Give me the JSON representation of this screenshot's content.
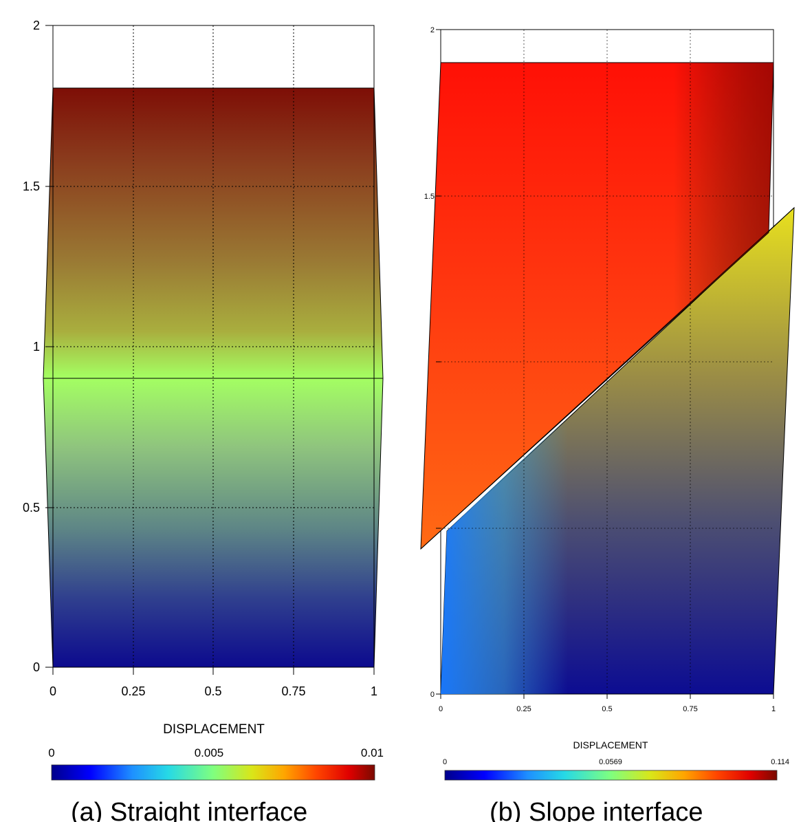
{
  "panels": [
    {
      "id": "a",
      "caption": "(a) Straight interface",
      "x_ticks": [
        "0",
        "0.25",
        "0.5",
        "0.75",
        "1"
      ],
      "y_ticks": [
        "0",
        "0.5",
        "1",
        "1.5",
        "2"
      ],
      "colorbar": {
        "title": "DISPLACEMENT",
        "min_label": "0",
        "mid_label": "0.005",
        "max_label": "0.01"
      }
    },
    {
      "id": "b",
      "caption": "(b) Slope interface",
      "x_ticks": [
        "0",
        "0.25",
        "0.5",
        "0.75",
        "1"
      ],
      "y_ticks": [
        "0",
        "1.5",
        "2"
      ],
      "colorbar": {
        "title": "DISPLACEMENT",
        "min_label": "0",
        "mid_label": "0.0569",
        "max_label": "0.114"
      }
    }
  ],
  "colors": {
    "colormap": [
      "#00008b",
      "#0000ff",
      "#1e90ff",
      "#26d9e6",
      "#7fff7f",
      "#d9e619",
      "#ffa500",
      "#ff4500",
      "#e00000",
      "#7a0a00"
    ]
  }
}
